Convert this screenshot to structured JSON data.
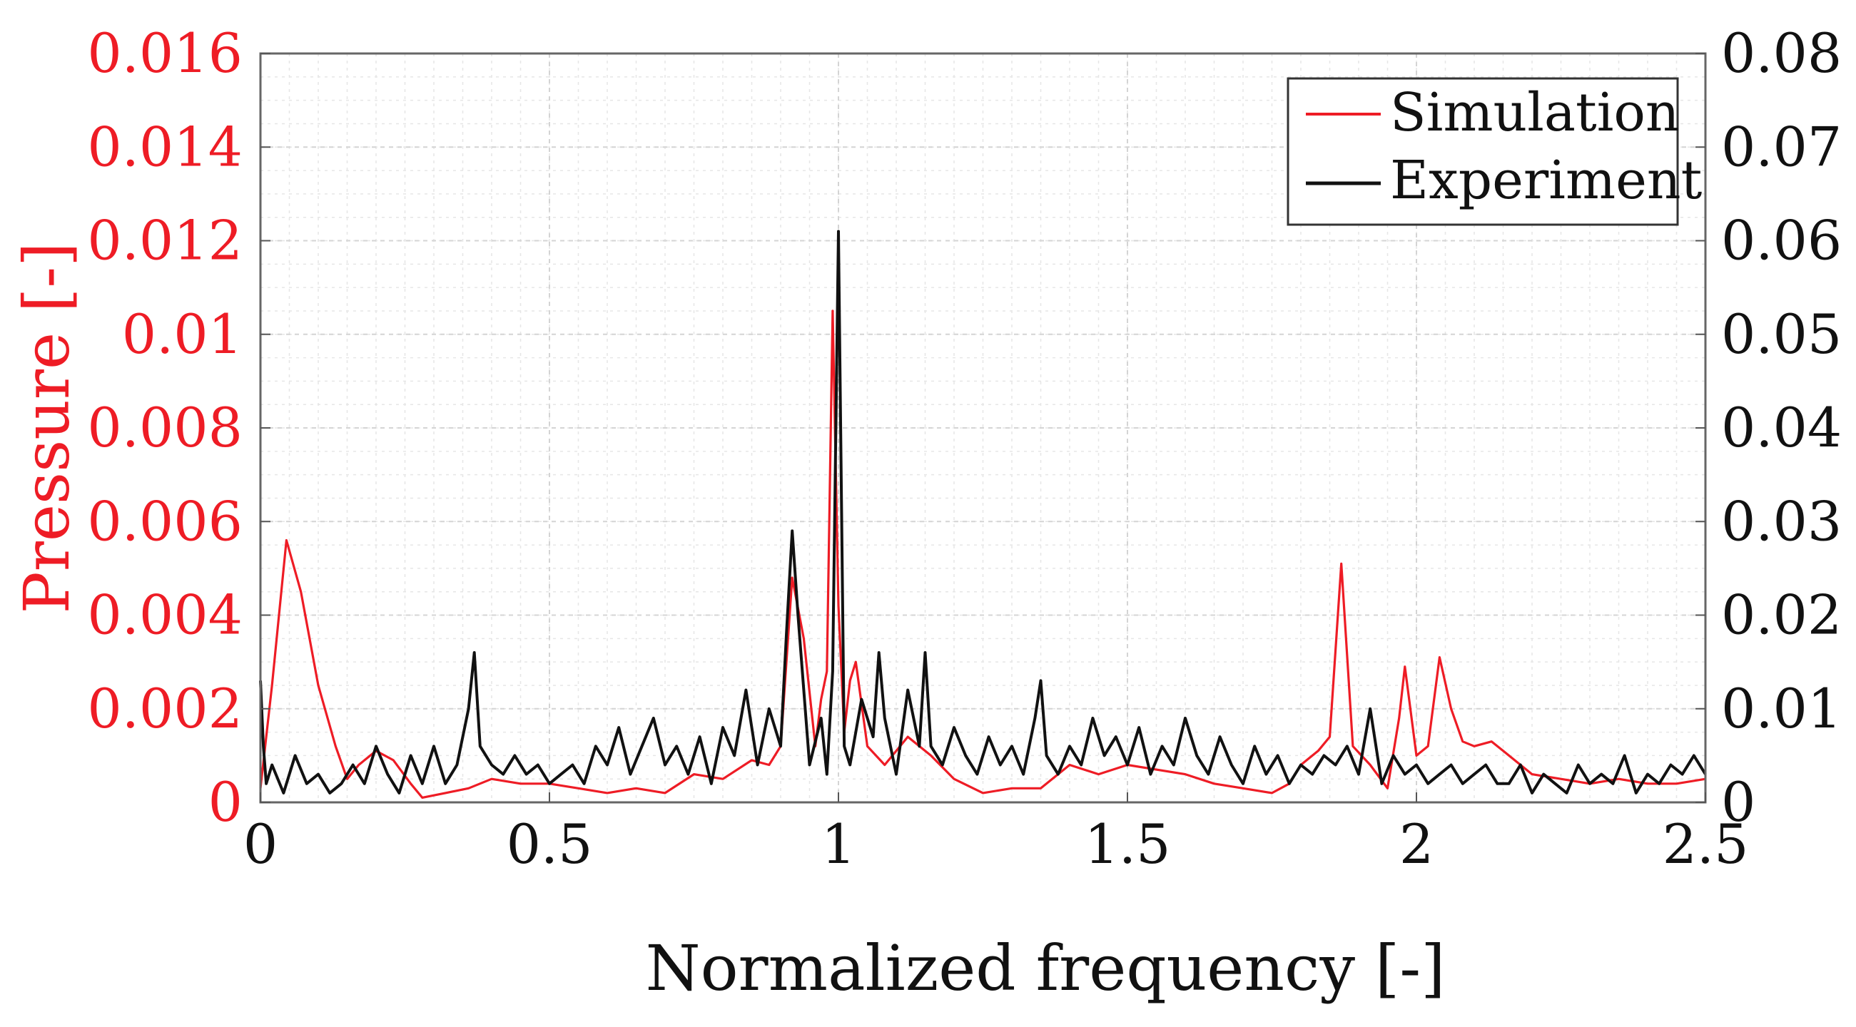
{
  "chart_data": {
    "type": "line",
    "xlabel": "Normalized frequency [-]",
    "ylabel_left": "Pressure [-]",
    "ylabel_right": "",
    "xlim": [
      0,
      2.5
    ],
    "ylim_left": [
      0,
      0.016
    ],
    "ylim_right": [
      0,
      0.08
    ],
    "grid": true,
    "legend_position": "top-right",
    "x_ticks": [
      "0",
      "0.5",
      "1",
      "1.5",
      "2",
      "2.5"
    ],
    "y_ticks_left": [
      "0",
      "0.002",
      "0.004",
      "0.006",
      "0.008",
      "0.01",
      "0.012",
      "0.014",
      "0.016"
    ],
    "y_ticks_right": [
      "0",
      "0.01",
      "0.02",
      "0.03",
      "0.04",
      "0.05",
      "0.06",
      "0.07",
      "0.08"
    ],
    "series": [
      {
        "name": "Simulation",
        "axis": "left",
        "color": "#ee1c25",
        "x": [
          0,
          0.02,
          0.045,
          0.07,
          0.1,
          0.13,
          0.15,
          0.17,
          0.2,
          0.23,
          0.26,
          0.28,
          0.32,
          0.36,
          0.4,
          0.45,
          0.5,
          0.55,
          0.6,
          0.65,
          0.7,
          0.75,
          0.8,
          0.85,
          0.88,
          0.9,
          0.92,
          0.94,
          0.96,
          0.97,
          0.98,
          0.99,
          1.0,
          1.01,
          1.02,
          1.03,
          1.05,
          1.08,
          1.12,
          1.16,
          1.2,
          1.25,
          1.3,
          1.35,
          1.4,
          1.45,
          1.5,
          1.55,
          1.6,
          1.65,
          1.7,
          1.75,
          1.78,
          1.8,
          1.83,
          1.85,
          1.87,
          1.89,
          1.92,
          1.95,
          1.97,
          1.98,
          2.0,
          2.02,
          2.04,
          2.06,
          2.08,
          2.1,
          2.13,
          2.15,
          2.2,
          2.25,
          2.3,
          2.35,
          2.4,
          2.45,
          2.5
        ],
        "values": [
          0.0003,
          0.0025,
          0.0056,
          0.0045,
          0.0025,
          0.0012,
          0.0005,
          0.0008,
          0.0011,
          0.0009,
          0.0004,
          0.0001,
          0.0002,
          0.0003,
          0.0005,
          0.0004,
          0.0004,
          0.0003,
          0.0002,
          0.0003,
          0.0002,
          0.0006,
          0.0005,
          0.0009,
          0.0008,
          0.0012,
          0.0048,
          0.0035,
          0.0012,
          0.0022,
          0.0028,
          0.0105,
          0.0042,
          0.0015,
          0.0026,
          0.003,
          0.0012,
          0.0008,
          0.0014,
          0.001,
          0.0005,
          0.0002,
          0.0003,
          0.0003,
          0.0008,
          0.0006,
          0.0008,
          0.0007,
          0.0006,
          0.0004,
          0.0003,
          0.0002,
          0.0004,
          0.0008,
          0.0011,
          0.0014,
          0.0051,
          0.0012,
          0.0008,
          0.0003,
          0.0018,
          0.0029,
          0.001,
          0.0012,
          0.0031,
          0.002,
          0.0013,
          0.0012,
          0.0013,
          0.0011,
          0.0006,
          0.0005,
          0.0004,
          0.0005,
          0.0004,
          0.0004,
          0.0005
        ]
      },
      {
        "name": "Experiment",
        "axis": "right",
        "color": "#111111",
        "x": [
          0,
          0.005,
          0.01,
          0.02,
          0.04,
          0.06,
          0.08,
          0.1,
          0.12,
          0.14,
          0.16,
          0.18,
          0.2,
          0.22,
          0.24,
          0.26,
          0.28,
          0.3,
          0.32,
          0.34,
          0.36,
          0.37,
          0.38,
          0.4,
          0.42,
          0.44,
          0.46,
          0.48,
          0.5,
          0.52,
          0.54,
          0.56,
          0.58,
          0.6,
          0.62,
          0.64,
          0.66,
          0.68,
          0.7,
          0.72,
          0.74,
          0.76,
          0.78,
          0.8,
          0.82,
          0.84,
          0.86,
          0.88,
          0.9,
          0.91,
          0.92,
          0.93,
          0.95,
          0.97,
          0.98,
          0.99,
          1.0,
          1.01,
          1.02,
          1.04,
          1.06,
          1.07,
          1.08,
          1.1,
          1.12,
          1.14,
          1.15,
          1.16,
          1.18,
          1.2,
          1.22,
          1.24,
          1.26,
          1.28,
          1.3,
          1.32,
          1.34,
          1.35,
          1.36,
          1.38,
          1.4,
          1.42,
          1.44,
          1.46,
          1.48,
          1.5,
          1.52,
          1.54,
          1.56,
          1.58,
          1.6,
          1.62,
          1.64,
          1.66,
          1.68,
          1.7,
          1.72,
          1.74,
          1.76,
          1.78,
          1.8,
          1.82,
          1.84,
          1.86,
          1.88,
          1.9,
          1.92,
          1.94,
          1.96,
          1.98,
          2.0,
          2.02,
          2.04,
          2.06,
          2.08,
          2.1,
          2.12,
          2.14,
          2.16,
          2.18,
          2.2,
          2.22,
          2.24,
          2.26,
          2.28,
          2.3,
          2.32,
          2.34,
          2.36,
          2.38,
          2.4,
          2.42,
          2.44,
          2.46,
          2.48,
          2.5
        ],
        "values": [
          0.013,
          0.006,
          0.002,
          0.004,
          0.001,
          0.005,
          0.002,
          0.003,
          0.001,
          0.002,
          0.004,
          0.002,
          0.006,
          0.003,
          0.001,
          0.005,
          0.002,
          0.006,
          0.002,
          0.004,
          0.01,
          0.016,
          0.006,
          0.004,
          0.003,
          0.005,
          0.003,
          0.004,
          0.002,
          0.003,
          0.004,
          0.002,
          0.006,
          0.004,
          0.008,
          0.003,
          0.006,
          0.009,
          0.004,
          0.006,
          0.003,
          0.007,
          0.002,
          0.008,
          0.005,
          0.012,
          0.004,
          0.01,
          0.006,
          0.018,
          0.029,
          0.02,
          0.004,
          0.009,
          0.003,
          0.014,
          0.061,
          0.006,
          0.004,
          0.011,
          0.007,
          0.016,
          0.009,
          0.003,
          0.012,
          0.006,
          0.016,
          0.006,
          0.004,
          0.008,
          0.005,
          0.003,
          0.007,
          0.004,
          0.006,
          0.003,
          0.009,
          0.013,
          0.005,
          0.003,
          0.006,
          0.004,
          0.009,
          0.005,
          0.007,
          0.004,
          0.008,
          0.003,
          0.006,
          0.004,
          0.009,
          0.005,
          0.003,
          0.007,
          0.004,
          0.002,
          0.006,
          0.003,
          0.005,
          0.002,
          0.004,
          0.003,
          0.005,
          0.004,
          0.006,
          0.003,
          0.01,
          0.002,
          0.005,
          0.003,
          0.004,
          0.002,
          0.003,
          0.004,
          0.002,
          0.003,
          0.004,
          0.002,
          0.002,
          0.004,
          0.001,
          0.003,
          0.002,
          0.001,
          0.004,
          0.002,
          0.003,
          0.002,
          0.005,
          0.001,
          0.003,
          0.002,
          0.004,
          0.003,
          0.005,
          0.003
        ]
      }
    ]
  }
}
